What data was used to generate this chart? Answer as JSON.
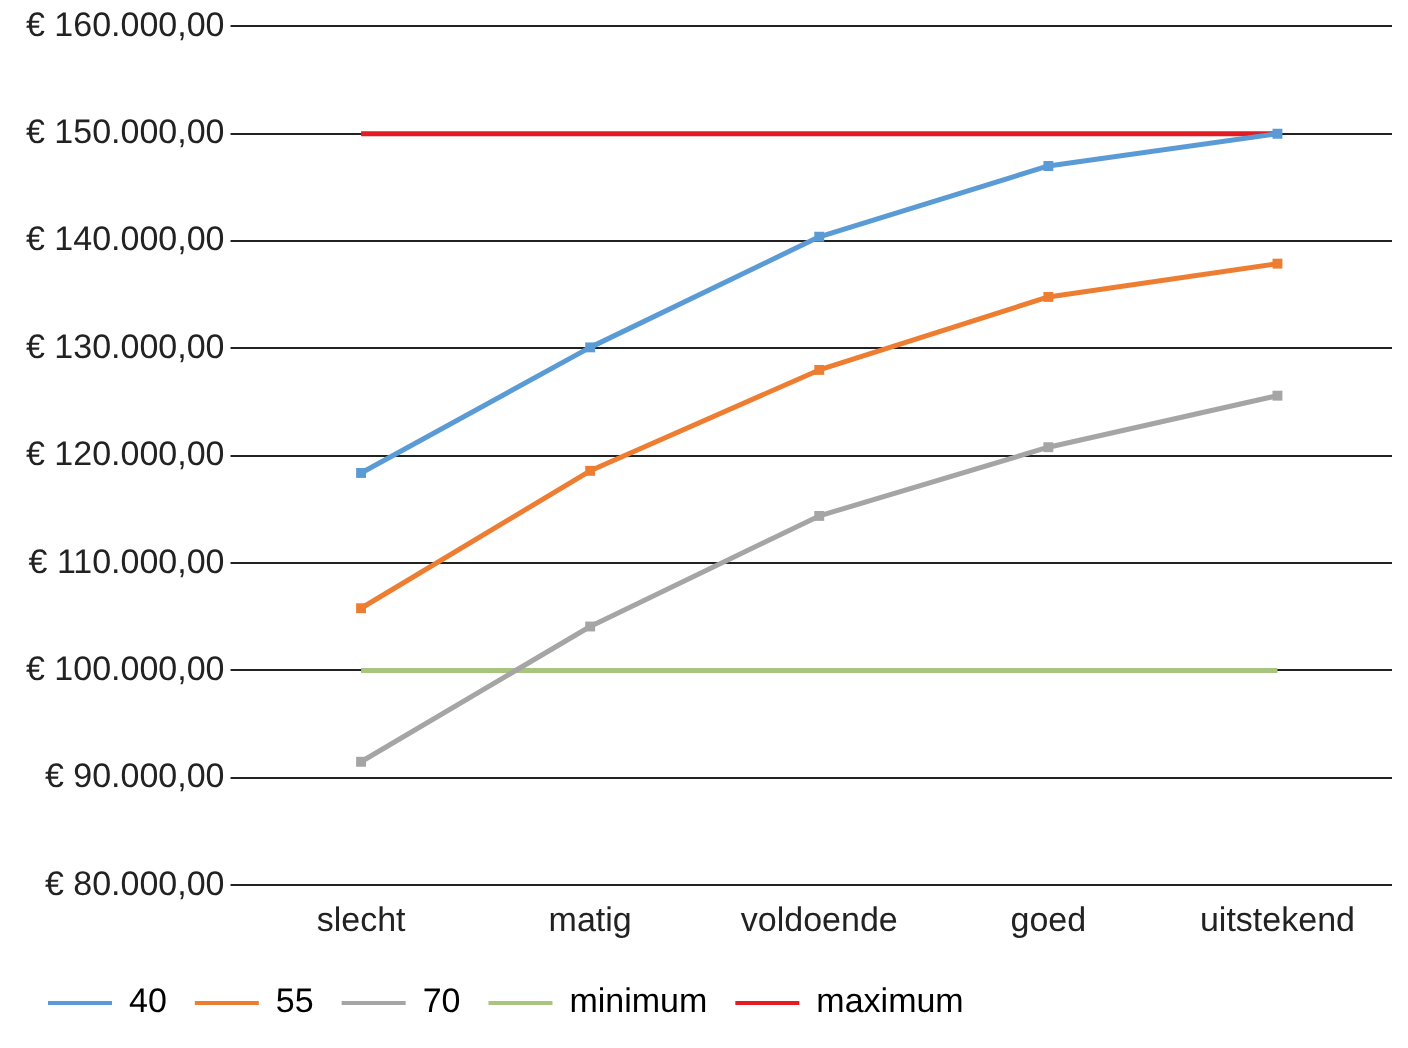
{
  "chart_data": {
    "type": "line",
    "categories": [
      "slecht",
      "matig",
      "voldoende",
      "goed",
      "uitstekend"
    ],
    "series": [
      {
        "name": "40",
        "color": "#5b9bd5",
        "marker": "square",
        "values": [
          118400,
          130100,
          140400,
          147000,
          150000
        ]
      },
      {
        "name": "55",
        "color": "#ed7d31",
        "marker": "square",
        "values": [
          105800,
          118600,
          128000,
          134800,
          137900
        ]
      },
      {
        "name": "70",
        "color": "#a5a5a5",
        "marker": "square",
        "values": [
          91500,
          104100,
          114400,
          120800,
          125600
        ]
      },
      {
        "name": "minimum",
        "color": "#a9c47f",
        "marker": "none",
        "values": [
          100000,
          100000,
          100000,
          100000,
          100000
        ]
      },
      {
        "name": "maximum",
        "color": "#e31b23",
        "marker": "none",
        "values": [
          150000,
          150000,
          150000,
          150000,
          150000
        ]
      }
    ],
    "ylim": [
      80000,
      160000
    ],
    "yticks": [
      {
        "value": 80000,
        "label": "€ 80.000,00"
      },
      {
        "value": 90000,
        "label": "€ 90.000,00"
      },
      {
        "value": 100000,
        "label": "€ 100.000,00"
      },
      {
        "value": 110000,
        "label": "€ 110.000,00"
      },
      {
        "value": 120000,
        "label": "€ 120.000,00"
      },
      {
        "value": 130000,
        "label": "€ 130.000,00"
      },
      {
        "value": 140000,
        "label": "€ 140.000,00"
      },
      {
        "value": 150000,
        "label": "€ 150.000,00"
      },
      {
        "value": 160000,
        "label": "€ 160.000,00"
      }
    ],
    "grid": "y",
    "legend": "bottom",
    "line_style": "solid"
  }
}
